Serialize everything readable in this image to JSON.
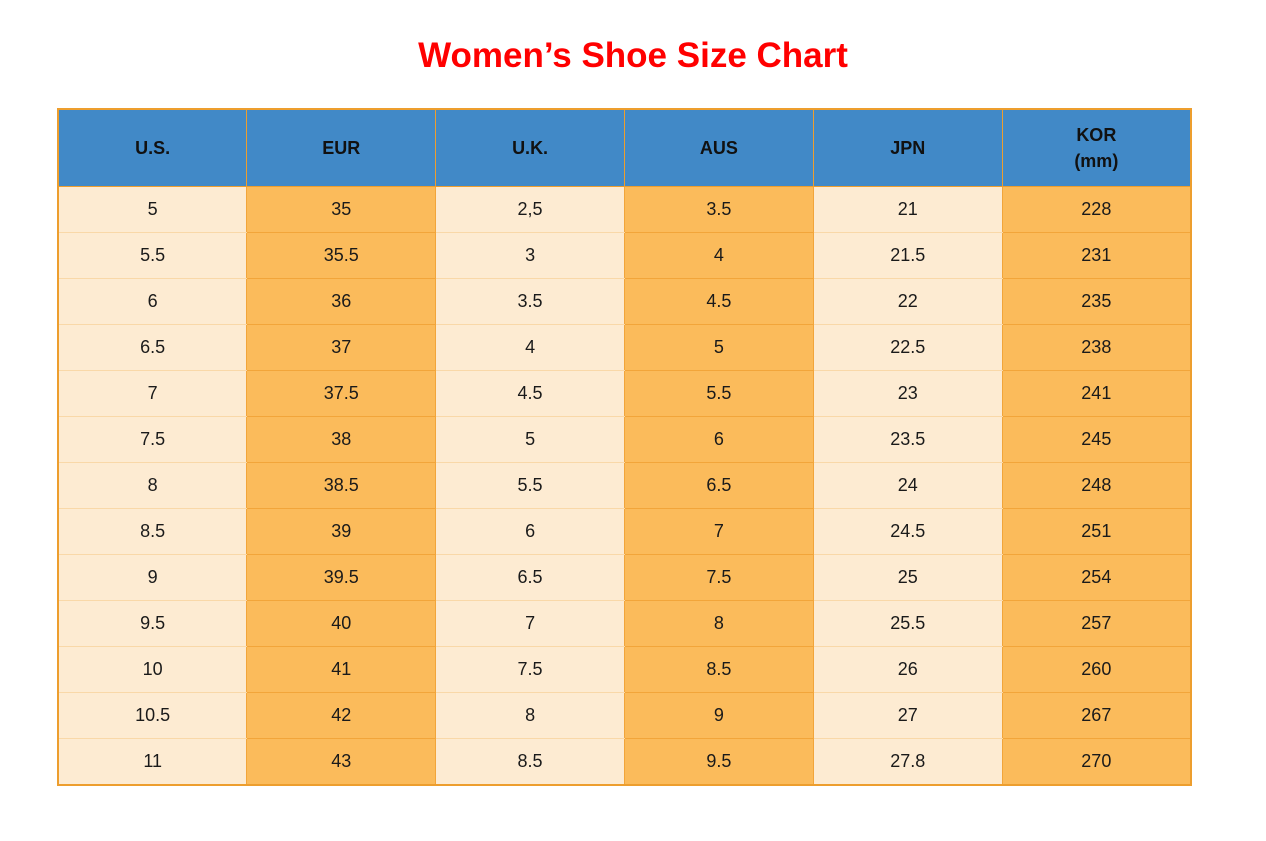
{
  "title": "Women’s Shoe Size Chart",
  "colors": {
    "title_red": "#ff0000",
    "header_blue": "#4189c7",
    "column_light": "#fdebd2",
    "column_dark": "#fbbb5b",
    "grid_border": "#f2a53a",
    "outer_border": "#ed9e2e",
    "cell_text": "#1a1a1a"
  },
  "chart_data": {
    "type": "table",
    "title": "Women’s Shoe Size Chart",
    "columns": [
      "U.S.",
      "EUR",
      "U.K.",
      "AUS",
      "JPN",
      "KOR\n(mm)"
    ],
    "column_keys": [
      "us",
      "eur",
      "uk",
      "aus",
      "jpn",
      "kor-mm"
    ],
    "rows": [
      [
        "5",
        "35",
        "2,5",
        "3.5",
        "21",
        "228"
      ],
      [
        "5.5",
        "35.5",
        "3",
        "4",
        "21.5",
        "231"
      ],
      [
        "6",
        "36",
        "3.5",
        "4.5",
        "22",
        "235"
      ],
      [
        "6.5",
        "37",
        "4",
        "5",
        "22.5",
        "238"
      ],
      [
        "7",
        "37.5",
        "4.5",
        "5.5",
        "23",
        "241"
      ],
      [
        "7.5",
        "38",
        "5",
        "6",
        "23.5",
        "245"
      ],
      [
        "8",
        "38.5",
        "5.5",
        "6.5",
        "24",
        "248"
      ],
      [
        "8.5",
        "39",
        "6",
        "7",
        "24.5",
        "251"
      ],
      [
        "9",
        "39.5",
        "6.5",
        "7.5",
        "25",
        "254"
      ],
      [
        "9.5",
        "40",
        "7",
        "8",
        "25.5",
        "257"
      ],
      [
        "10",
        "41",
        "7.5",
        "8.5",
        "26",
        "260"
      ],
      [
        "10.5",
        "42",
        "8",
        "9",
        "27",
        "267"
      ],
      [
        "11",
        "43",
        "8.5",
        "9.5",
        "27.8",
        "270"
      ]
    ],
    "layout": {
      "column_banding": [
        "light",
        "dark",
        "light",
        "dark",
        "light",
        "dark"
      ],
      "header_position": "top",
      "grid": true
    }
  }
}
